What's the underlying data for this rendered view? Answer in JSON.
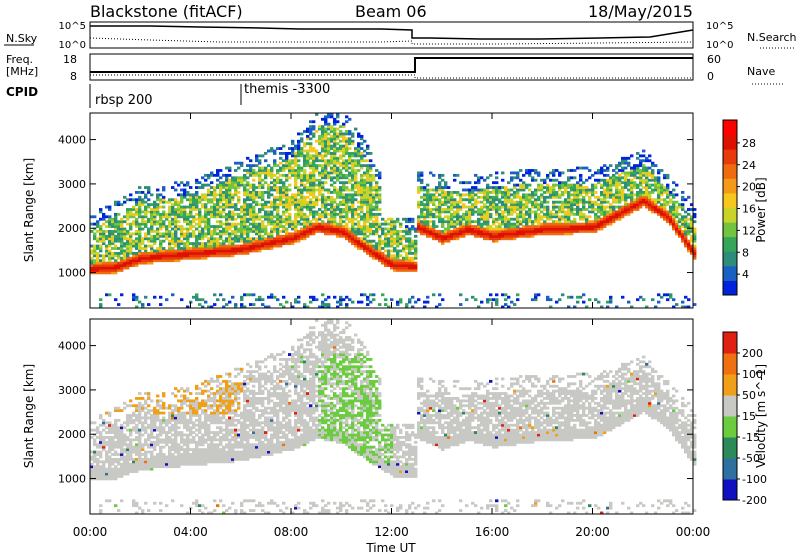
{
  "header": {
    "title": "Blackstone (fitACF)",
    "beam": "Beam 06",
    "date": "18/May/2015"
  },
  "noise_panel": {
    "left_label": "N.Sky",
    "left_ticks": [
      "10^5",
      "10^0"
    ],
    "right_ticks": [
      "10^5",
      "10^0"
    ],
    "right_label": "N.Search"
  },
  "freq_panel": {
    "left_label_1": "Freq.",
    "left_label_2": "[MHz]",
    "left_ticks": [
      "18",
      "8"
    ],
    "right_ticks": [
      "60",
      "0"
    ],
    "right_label": "Nave"
  },
  "cpid_panel": {
    "label": "CPID",
    "segments": [
      "rbsp 200",
      "themis -3300"
    ]
  },
  "chart_data": [
    {
      "type": "heatmap",
      "name": "power",
      "ylabel": "Slant Range [km]",
      "yticks": [
        1000,
        2000,
        3000,
        4000
      ],
      "ylim": [
        200,
        4600
      ],
      "colorbar_label": "Power [dB]",
      "colorbar_ticks": [
        "28",
        "24",
        "20",
        "16",
        "12",
        "8",
        "4"
      ],
      "colors": [
        "#0022dd",
        "#1a5fc4",
        "#2e8c7a",
        "#35a55a",
        "#72c43e",
        "#c8d42a",
        "#f5c81e",
        "#f59a17",
        "#f06a10",
        "#e83a0a",
        "#dd1100",
        "#ff0000"
      ]
    },
    {
      "type": "heatmap",
      "name": "velocity",
      "ylabel": "Slant Range [km]",
      "yticks": [
        1000,
        2000,
        3000,
        4000
      ],
      "ylim": [
        200,
        4600
      ],
      "colorbar_label": "Velocity [m s^-1]",
      "colorbar_ticks": [
        "200",
        "100",
        "50",
        "15",
        "-15",
        "-50",
        "-100",
        "-200"
      ],
      "colors": [
        "#1010c0",
        "#3070a0",
        "#2a8a5a",
        "#6ccc40",
        "#c8c8c4",
        "#f0a018",
        "#f07010",
        "#e02010"
      ]
    }
  ],
  "x_axis": {
    "ticks": [
      "00:00",
      "04:00",
      "08:00",
      "12:00",
      "16:00",
      "20:00",
      "00:00"
    ],
    "label": "Time UT"
  }
}
